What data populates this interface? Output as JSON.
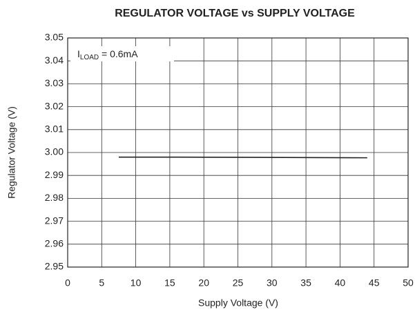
{
  "chart_data": {
    "type": "line",
    "title": "REGULATOR VOLTAGE vs SUPPLY VOLTAGE",
    "x_label": "Supply Voltage (V)",
    "y_label": "Regulator Voltage (V)",
    "annotation": {
      "symbol": "I",
      "subscript": "LOAD",
      "text": " = 0.6mA"
    },
    "x": [
      7.5,
      15,
      25,
      35,
      44
    ],
    "series": [
      {
        "color": "#222222",
        "values": [
          2.998,
          2.998,
          2.9979,
          2.9978,
          2.9977
        ]
      }
    ],
    "xlim": [
      0,
      50
    ],
    "xticks": [
      0,
      5,
      10,
      15,
      20,
      25,
      30,
      35,
      40,
      45,
      50
    ],
    "ylim": [
      2.95,
      3.05
    ],
    "yticks": [
      2.95,
      2.96,
      2.97,
      2.98,
      2.99,
      {
        "value": 3,
        "label": "3.00"
      },
      3.01,
      3.02,
      3.03,
      3.04,
      3.05
    ],
    "grid": true
  }
}
